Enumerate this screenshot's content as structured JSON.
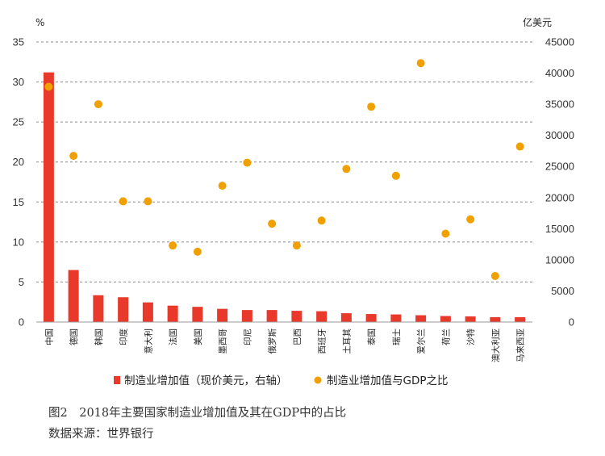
{
  "chart_data": {
    "type": "bar",
    "left_unit": "%",
    "right_unit": "亿美元",
    "categories": [
      "中国",
      "德国",
      "韩国",
      "印度",
      "意大利",
      "法国",
      "美国",
      "墨西哥",
      "印尼",
      "俄罗斯",
      "巴西",
      "西班牙",
      "土耳其",
      "泰国",
      "瑞士",
      "爱尔兰",
      "荷兰",
      "沙特",
      "澳大利亚",
      "马来西亚"
    ],
    "series": [
      {
        "name": "制造业增加值（现价美元，右轴）",
        "kind": "bar",
        "axis": "left",
        "color": "#e8392b",
        "values": [
          31.2,
          6.5,
          3.35,
          3.1,
          2.45,
          2.05,
          1.9,
          1.65,
          1.5,
          1.5,
          1.4,
          1.35,
          1.1,
          1.0,
          0.95,
          0.85,
          0.75,
          0.7,
          0.6,
          0.6
        ]
      },
      {
        "name": "制造业增加值与GDP之比",
        "kind": "scatter",
        "axis": "right",
        "color": "#f0a000",
        "values": [
          37800,
          26700,
          35000,
          19400,
          19400,
          12300,
          11300,
          21900,
          25600,
          15800,
          12300,
          16300,
          24600,
          34600,
          23500,
          41600,
          14200,
          16500,
          7400,
          28200
        ]
      }
    ],
    "ylim_left": [
      0,
      35
    ],
    "yticks_left": [
      0,
      5,
      10,
      15,
      20,
      25,
      30,
      35
    ],
    "ylim_right": [
      0,
      45000
    ],
    "yticks_right": [
      0,
      5000,
      10000,
      15000,
      20000,
      25000,
      30000,
      35000,
      40000,
      45000
    ],
    "grid": true,
    "legend_position": "bottom"
  },
  "caption": {
    "title": "图2　2018年主要国家制造业增加值及其在GDP中的占比",
    "source": "数据来源：世界银行"
  }
}
